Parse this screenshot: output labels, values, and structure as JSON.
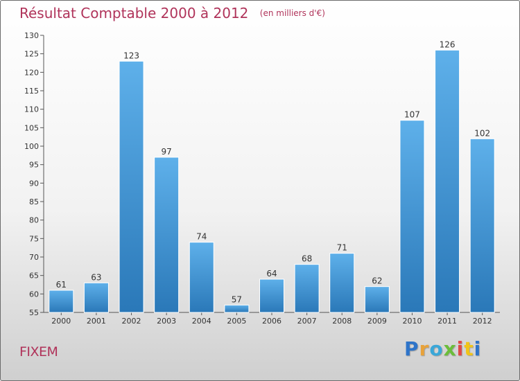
{
  "chart_data": {
    "type": "bar",
    "title": "Résultat Comptable 2000 à 2012",
    "subtitle": "(en milliers d'€)",
    "categories": [
      "2000",
      "2001",
      "2002",
      "2003",
      "2004",
      "2005",
      "2006",
      "2007",
      "2008",
      "2009",
      "2010",
      "2011",
      "2012"
    ],
    "values": [
      61,
      63,
      123,
      97,
      74,
      57,
      64,
      68,
      71,
      62,
      107,
      126,
      102
    ],
    "ylim": [
      55,
      130
    ],
    "yticks": [
      55,
      60,
      65,
      70,
      75,
      80,
      85,
      90,
      95,
      100,
      105,
      110,
      115,
      120,
      125,
      130
    ],
    "grid": false,
    "xlabel": "",
    "ylabel": ""
  },
  "footer": {
    "commune": "FIXEM",
    "logo_letters": [
      "P",
      "r",
      "o",
      "x",
      "i",
      "t",
      "i"
    ],
    "logo_colors": [
      "#2e74c9",
      "#e8a23a",
      "#3aa7d8",
      "#6bbd3a",
      "#e04848",
      "#f0c419",
      "#2e74c9"
    ]
  },
  "colors": {
    "bar_top": "#5eb0ea",
    "bar_bottom": "#2a78b8",
    "title": "#b0335a"
  }
}
